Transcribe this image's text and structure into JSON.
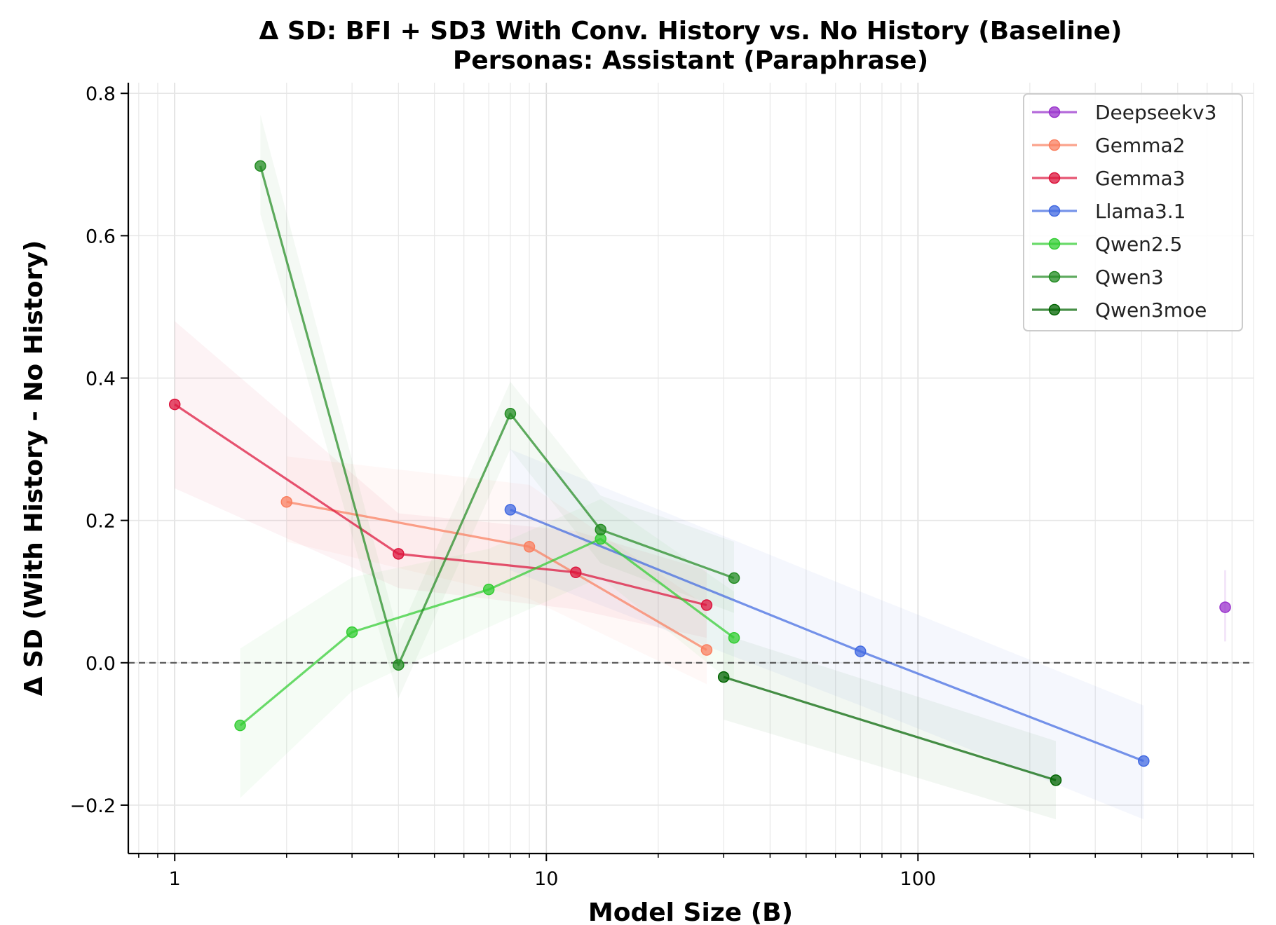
{
  "chart_data": {
    "type": "line",
    "title": "Δ SD: BFI + SD3 With Conv. History vs. No History (Baseline)",
    "subtitle": "Personas: Assistant (Paraphrase)",
    "xlabel": "Model Size (B)",
    "ylabel": "Δ SD (With History - No History)",
    "xscale": "log",
    "xlim": [
      0.75,
      800
    ],
    "ylim": [
      -0.268,
      0.815
    ],
    "x_ticks": [
      1,
      10,
      100
    ],
    "x_tick_labels": [
      "1",
      "10",
      "100"
    ],
    "y_ticks": [
      -0.2,
      0.0,
      0.2,
      0.4,
      0.6,
      0.8
    ],
    "y_tick_labels": [
      "−0.2",
      "0.0",
      "0.2",
      "0.4",
      "0.6",
      "0.8"
    ],
    "grid": true,
    "reference_line": {
      "y": 0.0,
      "style": "dashed"
    },
    "legend_position": "top-right",
    "series": [
      {
        "name": "Deepseekv3",
        "color": "#9932CC",
        "x": [
          671
        ],
        "y": [
          0.078
        ],
        "lower": [
          0.03
        ],
        "upper": [
          0.13
        ]
      },
      {
        "name": "Gemma2",
        "color": "#FA7F5F",
        "x": [
          2,
          9,
          27
        ],
        "y": [
          0.226,
          0.163,
          0.018
        ],
        "lower": [
          0.17,
          0.09,
          -0.03
        ],
        "upper": [
          0.29,
          0.25,
          0.08
        ]
      },
      {
        "name": "Gemma3",
        "color": "#DC143C",
        "x": [
          1,
          4,
          12,
          27
        ],
        "y": [
          0.363,
          0.153,
          0.127,
          0.081
        ],
        "lower": [
          0.245,
          0.105,
          0.075,
          0.035
        ],
        "upper": [
          0.48,
          0.21,
          0.185,
          0.13
        ]
      },
      {
        "name": "Llama3.1",
        "color": "#4169E1",
        "x": [
          8,
          70,
          405
        ],
        "y": [
          0.215,
          0.016,
          -0.138
        ],
        "lower": [
          0.13,
          -0.06,
          -0.22
        ],
        "upper": [
          0.3,
          0.1,
          -0.06
        ]
      },
      {
        "name": "Qwen2.5",
        "color": "#32CD32",
        "x": [
          1.5,
          3,
          7,
          14,
          32
        ],
        "y": [
          -0.088,
          0.043,
          0.103,
          0.174,
          0.035
        ],
        "lower": [
          -0.19,
          -0.04,
          0.05,
          0.12,
          -0.03
        ],
        "upper": [
          0.02,
          0.12,
          0.16,
          0.23,
          0.1
        ]
      },
      {
        "name": "Qwen3",
        "color": "#228B22",
        "x": [
          1.7,
          4,
          8,
          14,
          32
        ],
        "y": [
          0.698,
          -0.003,
          0.35,
          0.187,
          0.119
        ],
        "lower": [
          0.63,
          -0.05,
          0.3,
          0.14,
          0.07
        ],
        "upper": [
          0.77,
          0.04,
          0.395,
          0.235,
          0.17
        ]
      },
      {
        "name": "Qwen3moe",
        "color": "#006400",
        "x": [
          30,
          235
        ],
        "y": [
          -0.02,
          -0.165
        ],
        "lower": [
          -0.08,
          -0.22
        ],
        "upper": [
          0.04,
          -0.11
        ]
      }
    ]
  }
}
